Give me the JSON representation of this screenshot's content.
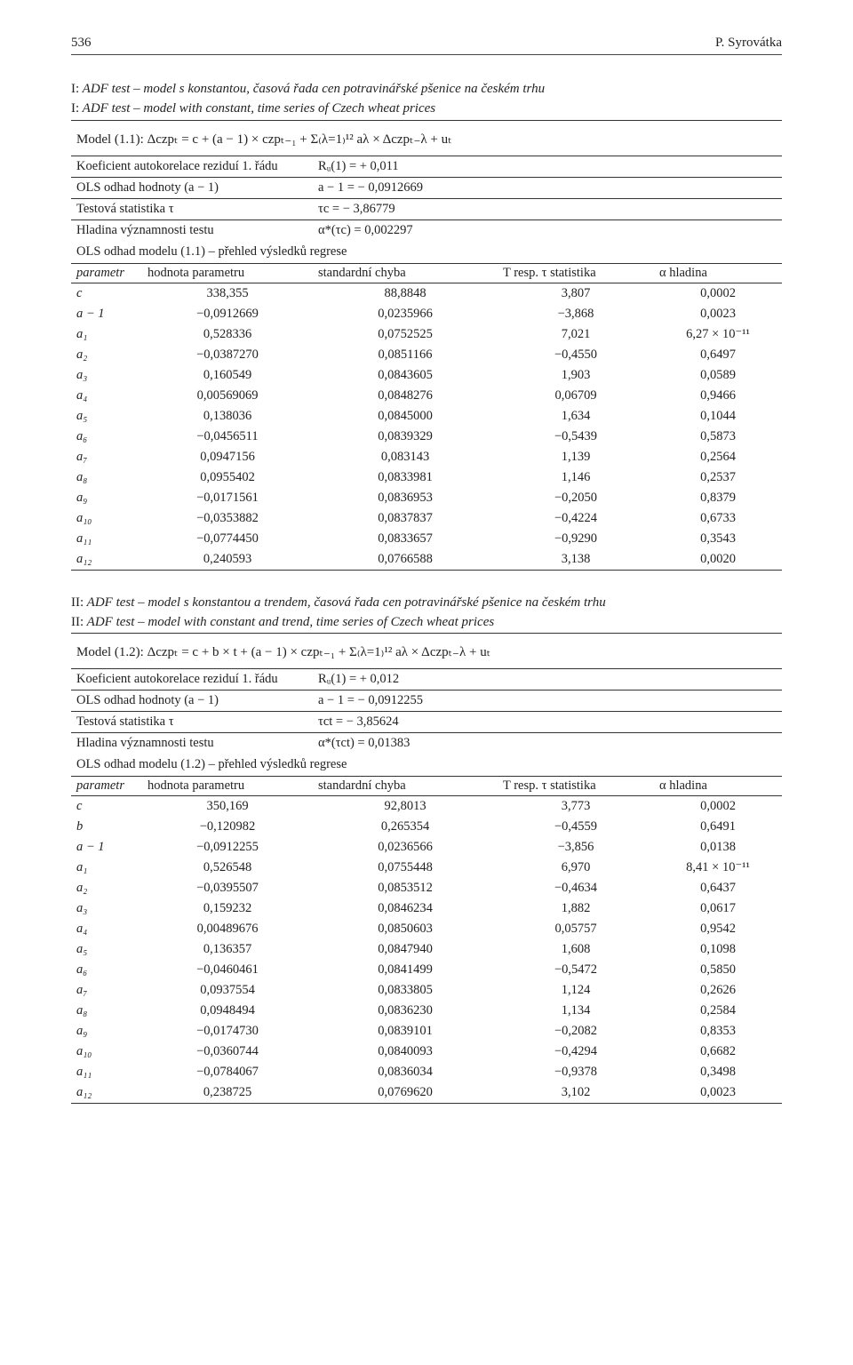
{
  "page_header": {
    "number": "536",
    "author": "P. Syrovátka"
  },
  "section1": {
    "caption_cz": "ADF test – model s konstantou, časová řada cen potravinářské pšenice na českém trhu",
    "caption_en": "ADF test – model with constant, time series of Czech wheat prices",
    "prefix": "I:",
    "model_formula": "Model (1.1): Δczpₜ = c + (a − 1) × czpₜ₋₁ + Σ₍λ=1₎¹² aλ × Δczpₜ₋λ + uₜ",
    "pairs": [
      {
        "l": "Koeficient autokorelace reziduí 1. řádu",
        "r": "Rᵤ(1) = + 0,011"
      },
      {
        "l": "OLS odhad hodnoty (a − 1)",
        "r": "a − 1 = − 0,0912669"
      },
      {
        "l": "Testová statistika τ",
        "r": "τc = − 3,86779"
      },
      {
        "l": "Hladina významnosti testu",
        "r": "α*(τc) = 0,002297"
      }
    ],
    "ols_line": "OLS odhad modelu (1.1) – přehled výsledků regrese",
    "headers": {
      "param": "parametr",
      "val": "hodnota parametru",
      "se": "standardní chyba",
      "t": "T resp. τ statistika",
      "a": "α hladina"
    },
    "rows": [
      {
        "p": "c",
        "v": "338,355",
        "se": "88,8848",
        "t": "3,807",
        "a": "0,0002"
      },
      {
        "p": "a − 1",
        "v": "−0,0912669",
        "se": "0,0235966",
        "t": "−3,868",
        "a": "0,0023"
      },
      {
        "p": "a₁",
        "v": "0,528336",
        "se": "0,0752525",
        "t": "7,021",
        "a": "6,27 × 10⁻¹¹"
      },
      {
        "p": "a₂",
        "v": "−0,0387270",
        "se": "0,0851166",
        "t": "−0,4550",
        "a": "0,6497"
      },
      {
        "p": "a₃",
        "v": "0,160549",
        "se": "0,0843605",
        "t": "1,903",
        "a": "0,0589"
      },
      {
        "p": "a₄",
        "v": "0,00569069",
        "se": "0,0848276",
        "t": "0,06709",
        "a": "0,9466"
      },
      {
        "p": "a₅",
        "v": "0,138036",
        "se": "0,0845000",
        "t": "1,634",
        "a": "0,1044"
      },
      {
        "p": "a₆",
        "v": "−0,0456511",
        "se": "0,0839329",
        "t": "−0,5439",
        "a": "0,5873"
      },
      {
        "p": "a₇",
        "v": "0,0947156",
        "se": "0,083143",
        "t": "1,139",
        "a": "0,2564"
      },
      {
        "p": "a₈",
        "v": "0,0955402",
        "se": "0,0833981",
        "t": "1,146",
        "a": "0,2537"
      },
      {
        "p": "a₉",
        "v": "−0,0171561",
        "se": "0,0836953",
        "t": "−0,2050",
        "a": "0,8379"
      },
      {
        "p": "a₁₀",
        "v": "−0,0353882",
        "se": "0,0837837",
        "t": "−0,4224",
        "a": "0,6733"
      },
      {
        "p": "a₁₁",
        "v": "−0,0774450",
        "se": "0,0833657",
        "t": "−0,9290",
        "a": "0,3543"
      },
      {
        "p": "a₁₂",
        "v": "0,240593",
        "se": "0,0766588",
        "t": "3,138",
        "a": "0,0020"
      }
    ]
  },
  "section2": {
    "caption_cz": "ADF test – model s konstantou a trendem, časová řada cen potravinářské pšenice na českém trhu",
    "caption_en": "ADF test – model with constant and trend, time series of Czech wheat prices",
    "prefix": "II:",
    "model_formula": "Model (1.2): Δczpₜ = c + b × t + (a − 1) × czpₜ₋₁ + Σ₍λ=1₎¹² aλ × Δczpₜ₋λ + uₜ",
    "pairs": [
      {
        "l": "Koeficient autokorelace reziduí 1. řádu",
        "r": "Rᵤ(1) = + 0,012"
      },
      {
        "l": "OLS odhad hodnoty (a − 1)",
        "r": "a − 1 = − 0,0912255"
      },
      {
        "l": "Testová statistika τ",
        "r": "τct = − 3,85624"
      },
      {
        "l": "Hladina významnosti testu",
        "r": "α*(τct) = 0,01383"
      }
    ],
    "ols_line": "OLS odhad modelu (1.2) – přehled výsledků regrese",
    "headers": {
      "param": "parametr",
      "val": "hodnota parametru",
      "se": "standardní chyba",
      "t": "T resp. τ statistika",
      "a": "α hladina"
    },
    "rows": [
      {
        "p": "c",
        "v": "350,169",
        "se": "92,8013",
        "t": "3,773",
        "a": "0,0002"
      },
      {
        "p": "b",
        "v": "−0,120982",
        "se": "0,265354",
        "t": "−0,4559",
        "a": "0,6491"
      },
      {
        "p": "a − 1",
        "v": "−0,0912255",
        "se": "0,0236566",
        "t": "−3,856",
        "a": "0,0138"
      },
      {
        "p": "a₁",
        "v": "0,526548",
        "se": "0,0755448",
        "t": "6,970",
        "a": "8,41 × 10⁻¹¹"
      },
      {
        "p": "a₂",
        "v": "−0,0395507",
        "se": "0,0853512",
        "t": "−0,4634",
        "a": "0,6437"
      },
      {
        "p": "a₃",
        "v": "0,159232",
        "se": "0,0846234",
        "t": "1,882",
        "a": "0,0617"
      },
      {
        "p": "a₄",
        "v": "0,00489676",
        "se": "0,0850603",
        "t": "0,05757",
        "a": "0,9542"
      },
      {
        "p": "a₅",
        "v": "0,136357",
        "se": "0,0847940",
        "t": "1,608",
        "a": "0,1098"
      },
      {
        "p": "a₆",
        "v": "−0,0460461",
        "se": "0,0841499",
        "t": "−0,5472",
        "a": "0,5850"
      },
      {
        "p": "a₇",
        "v": "0,0937554",
        "se": "0,0833805",
        "t": "1,124",
        "a": "0,2626"
      },
      {
        "p": "a₈",
        "v": "0,0948494",
        "se": "0,0836230",
        "t": "1,134",
        "a": "0,2584"
      },
      {
        "p": "a₉",
        "v": "−0,0174730",
        "se": "0,0839101",
        "t": "−0,2082",
        "a": "0,8353"
      },
      {
        "p": "a₁₀",
        "v": "−0,0360744",
        "se": "0,0840093",
        "t": "−0,4294",
        "a": "0,6682"
      },
      {
        "p": "a₁₁",
        "v": "−0,0784067",
        "se": "0,0836034",
        "t": "−0,9378",
        "a": "0,3498"
      },
      {
        "p": "a₁₂",
        "v": "0,238725",
        "se": "0,0769620",
        "t": "3,102",
        "a": "0,0023"
      }
    ]
  }
}
